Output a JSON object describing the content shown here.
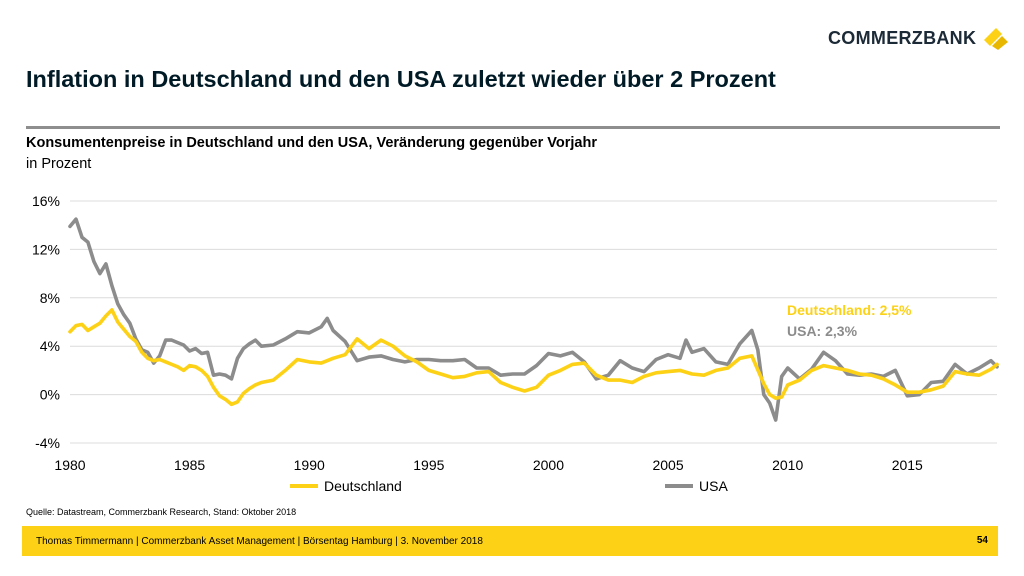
{
  "logo": {
    "text": "COMMERZBANK",
    "icon": "commerzbank-ribbon-icon",
    "accent": "#fcd116"
  },
  "title": "Inflation in Deutschland und den USA zuletzt wieder über 2 Prozent",
  "subtitle": "Konsumentenpreise in Deutschland und den USA, Veränderung gegenüber Vorjahr",
  "unit": "in Prozent",
  "source": "Quelle: Datastream, Commerzbank Research, Stand: Oktober 2018",
  "footer": {
    "text": "Thomas Timmermann | Commerzbank Asset Management | Börsentag Hamburg | 3. November 2018",
    "page": "54"
  },
  "chart_data": {
    "type": "line",
    "xlim": [
      1980,
      2018.75
    ],
    "ylim": [
      -4,
      16
    ],
    "y_ticks": [
      16,
      12,
      8,
      4,
      0,
      -4
    ],
    "y_tick_labels": [
      "16%",
      "12%",
      "8%",
      "4%",
      "0%",
      "-4%"
    ],
    "x_ticks": [
      1980,
      1985,
      1990,
      1995,
      2000,
      2005,
      2010,
      2015
    ],
    "x_tick_labels": [
      "1980",
      "1985",
      "1990",
      "1995",
      "2000",
      "2005",
      "2010",
      "2015"
    ],
    "grid": true,
    "legend_position": "bottom",
    "annotations": [
      {
        "text": "Deutschland: 2,5%",
        "series": "Deutschland"
      },
      {
        "text": "USA: 2,3%",
        "series": "USA"
      }
    ],
    "series": [
      {
        "name": "Deutschland",
        "color": "#fcd116",
        "x": [
          1980.0,
          1980.25,
          1980.5,
          1980.75,
          1981.0,
          1981.25,
          1981.5,
          1981.75,
          1982.0,
          1982.25,
          1982.5,
          1982.75,
          1983.0,
          1983.25,
          1983.5,
          1983.75,
          1984.0,
          1984.25,
          1984.5,
          1984.75,
          1985.0,
          1985.25,
          1985.5,
          1985.75,
          1986.0,
          1986.25,
          1986.5,
          1986.75,
          1987.0,
          1987.25,
          1987.5,
          1987.75,
          1988.0,
          1988.5,
          1989.0,
          1989.5,
          1990.0,
          1990.5,
          1991.0,
          1991.5,
          1992.0,
          1992.5,
          1993.0,
          1993.5,
          1994.0,
          1994.5,
          1995.0,
          1995.5,
          1996.0,
          1996.5,
          1997.0,
          1997.5,
          1998.0,
          1998.5,
          1999.0,
          1999.5,
          2000.0,
          2000.5,
          2001.0,
          2001.5,
          2002.0,
          2002.5,
          2003.0,
          2003.5,
          2004.0,
          2004.5,
          2005.0,
          2005.5,
          2006.0,
          2006.5,
          2007.0,
          2007.5,
          2008.0,
          2008.5,
          2009.0,
          2009.25,
          2009.5,
          2009.75,
          2010.0,
          2010.5,
          2011.0,
          2011.5,
          2012.0,
          2012.5,
          2013.0,
          2013.5,
          2014.0,
          2014.5,
          2015.0,
          2015.5,
          2016.0,
          2016.5,
          2017.0,
          2017.5,
          2018.0,
          2018.5,
          2018.75
        ],
        "values": [
          5.2,
          5.7,
          5.8,
          5.3,
          5.6,
          5.9,
          6.5,
          7.0,
          6.0,
          5.4,
          4.8,
          4.4,
          3.5,
          3.0,
          2.8,
          2.9,
          2.7,
          2.5,
          2.3,
          2.0,
          2.4,
          2.3,
          2.0,
          1.5,
          0.6,
          -0.1,
          -0.4,
          -0.8,
          -0.6,
          0.1,
          0.5,
          0.8,
          1.0,
          1.2,
          2.0,
          2.9,
          2.7,
          2.6,
          3.0,
          3.3,
          4.6,
          3.8,
          4.5,
          4.0,
          3.2,
          2.7,
          2.0,
          1.7,
          1.4,
          1.5,
          1.8,
          1.9,
          1.0,
          0.6,
          0.3,
          0.6,
          1.6,
          2.0,
          2.5,
          2.6,
          1.6,
          1.2,
          1.2,
          1.0,
          1.5,
          1.8,
          1.9,
          2.0,
          1.7,
          1.6,
          2.0,
          2.2,
          3.0,
          3.2,
          0.9,
          0.0,
          -0.3,
          -0.2,
          0.8,
          1.2,
          2.0,
          2.4,
          2.2,
          2.0,
          1.7,
          1.6,
          1.3,
          0.8,
          0.2,
          0.2,
          0.4,
          0.7,
          1.9,
          1.7,
          1.6,
          2.1,
          2.5
        ]
      },
      {
        "name": "USA",
        "color": "#8c8c8c",
        "x": [
          1980.0,
          1980.25,
          1980.5,
          1980.75,
          1981.0,
          1981.25,
          1981.5,
          1981.75,
          1982.0,
          1982.25,
          1982.5,
          1982.75,
          1983.0,
          1983.25,
          1983.5,
          1983.75,
          1984.0,
          1984.25,
          1984.5,
          1984.75,
          1985.0,
          1985.25,
          1985.5,
          1985.75,
          1986.0,
          1986.25,
          1986.5,
          1986.75,
          1987.0,
          1987.25,
          1987.5,
          1987.75,
          1988.0,
          1988.5,
          1989.0,
          1989.5,
          1990.0,
          1990.5,
          1990.75,
          1991.0,
          1991.5,
          1992.0,
          1992.5,
          1993.0,
          1993.5,
          1994.0,
          1994.5,
          1995.0,
          1995.5,
          1996.0,
          1996.5,
          1997.0,
          1997.5,
          1998.0,
          1998.5,
          1999.0,
          1999.5,
          2000.0,
          2000.5,
          2001.0,
          2001.5,
          2002.0,
          2002.5,
          2003.0,
          2003.5,
          2004.0,
          2004.5,
          2005.0,
          2005.5,
          2005.75,
          2006.0,
          2006.5,
          2007.0,
          2007.5,
          2008.0,
          2008.5,
          2008.75,
          2009.0,
          2009.25,
          2009.5,
          2009.75,
          2010.0,
          2010.5,
          2011.0,
          2011.5,
          2012.0,
          2012.5,
          2013.0,
          2013.5,
          2014.0,
          2014.5,
          2015.0,
          2015.5,
          2016.0,
          2016.5,
          2017.0,
          2017.5,
          2018.0,
          2018.5,
          2018.75
        ],
        "values": [
          13.9,
          14.5,
          13.0,
          12.6,
          11.0,
          10.0,
          10.8,
          9.0,
          7.5,
          6.6,
          5.9,
          4.6,
          3.7,
          3.5,
          2.6,
          3.2,
          4.5,
          4.5,
          4.3,
          4.1,
          3.6,
          3.8,
          3.4,
          3.5,
          1.6,
          1.7,
          1.6,
          1.3,
          3.0,
          3.8,
          4.2,
          4.5,
          4.0,
          4.1,
          4.6,
          5.2,
          5.1,
          5.6,
          6.3,
          5.3,
          4.4,
          2.8,
          3.1,
          3.2,
          2.9,
          2.7,
          2.9,
          2.9,
          2.8,
          2.8,
          2.9,
          2.2,
          2.2,
          1.6,
          1.7,
          1.7,
          2.4,
          3.4,
          3.2,
          3.5,
          2.7,
          1.3,
          1.6,
          2.8,
          2.2,
          1.9,
          2.9,
          3.3,
          3.0,
          4.5,
          3.5,
          3.8,
          2.7,
          2.5,
          4.2,
          5.3,
          3.7,
          0.0,
          -0.7,
          -2.1,
          1.5,
          2.2,
          1.3,
          2.1,
          3.5,
          2.8,
          1.7,
          1.6,
          1.7,
          1.5,
          2.0,
          -0.1,
          0.0,
          1.0,
          1.1,
          2.5,
          1.7,
          2.2,
          2.8,
          2.3
        ]
      }
    ]
  }
}
